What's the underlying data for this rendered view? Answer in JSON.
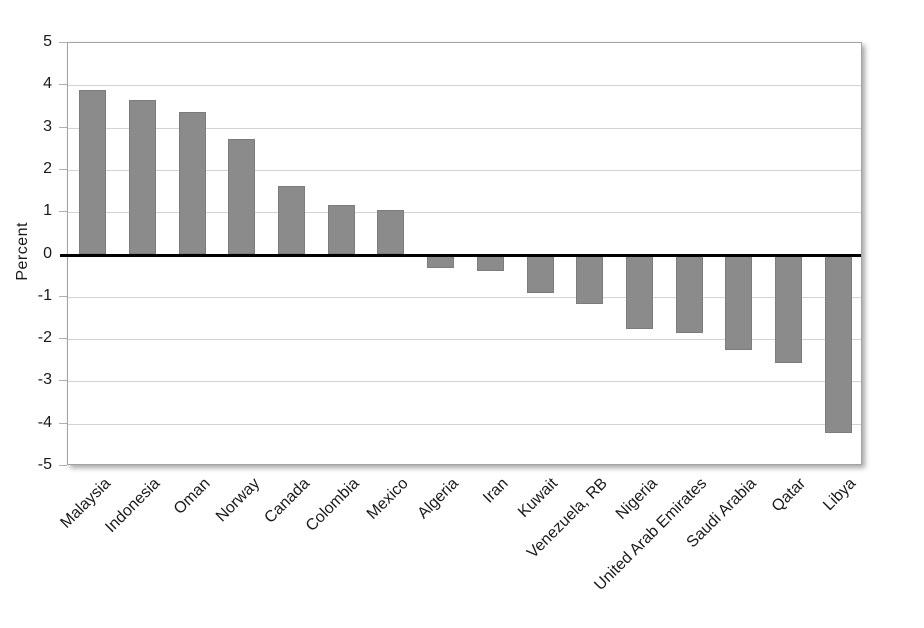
{
  "chart_data": {
    "type": "bar",
    "title": "",
    "xlabel": "",
    "ylabel": "Percent",
    "ylim": [
      -5,
      5
    ],
    "ytick_step": 1,
    "ytick_labels": [
      "5",
      "4",
      "3",
      "2",
      "1",
      "0",
      "-1",
      "-2",
      "-3",
      "-4",
      "-5"
    ],
    "grid": true,
    "legend": "none",
    "bar_color": "#8b8b8b",
    "zero_line_color": "#000000",
    "categories": [
      "Malaysia",
      "Indonesia",
      "Oman",
      "Norway",
      "Canada",
      "Colombia",
      "Mexico",
      "Algeria",
      "Iran",
      "Kuwait",
      "Venezuela, RB",
      "Nigeria",
      "United Arab Emirates",
      "Saudi Arabia",
      "Qatar",
      "Libya"
    ],
    "values": [
      3.9,
      3.65,
      3.37,
      2.72,
      1.62,
      1.17,
      1.06,
      -0.33,
      -0.4,
      -0.9,
      -1.18,
      -1.75,
      -1.86,
      -2.25,
      -2.57,
      -4.23
    ]
  }
}
